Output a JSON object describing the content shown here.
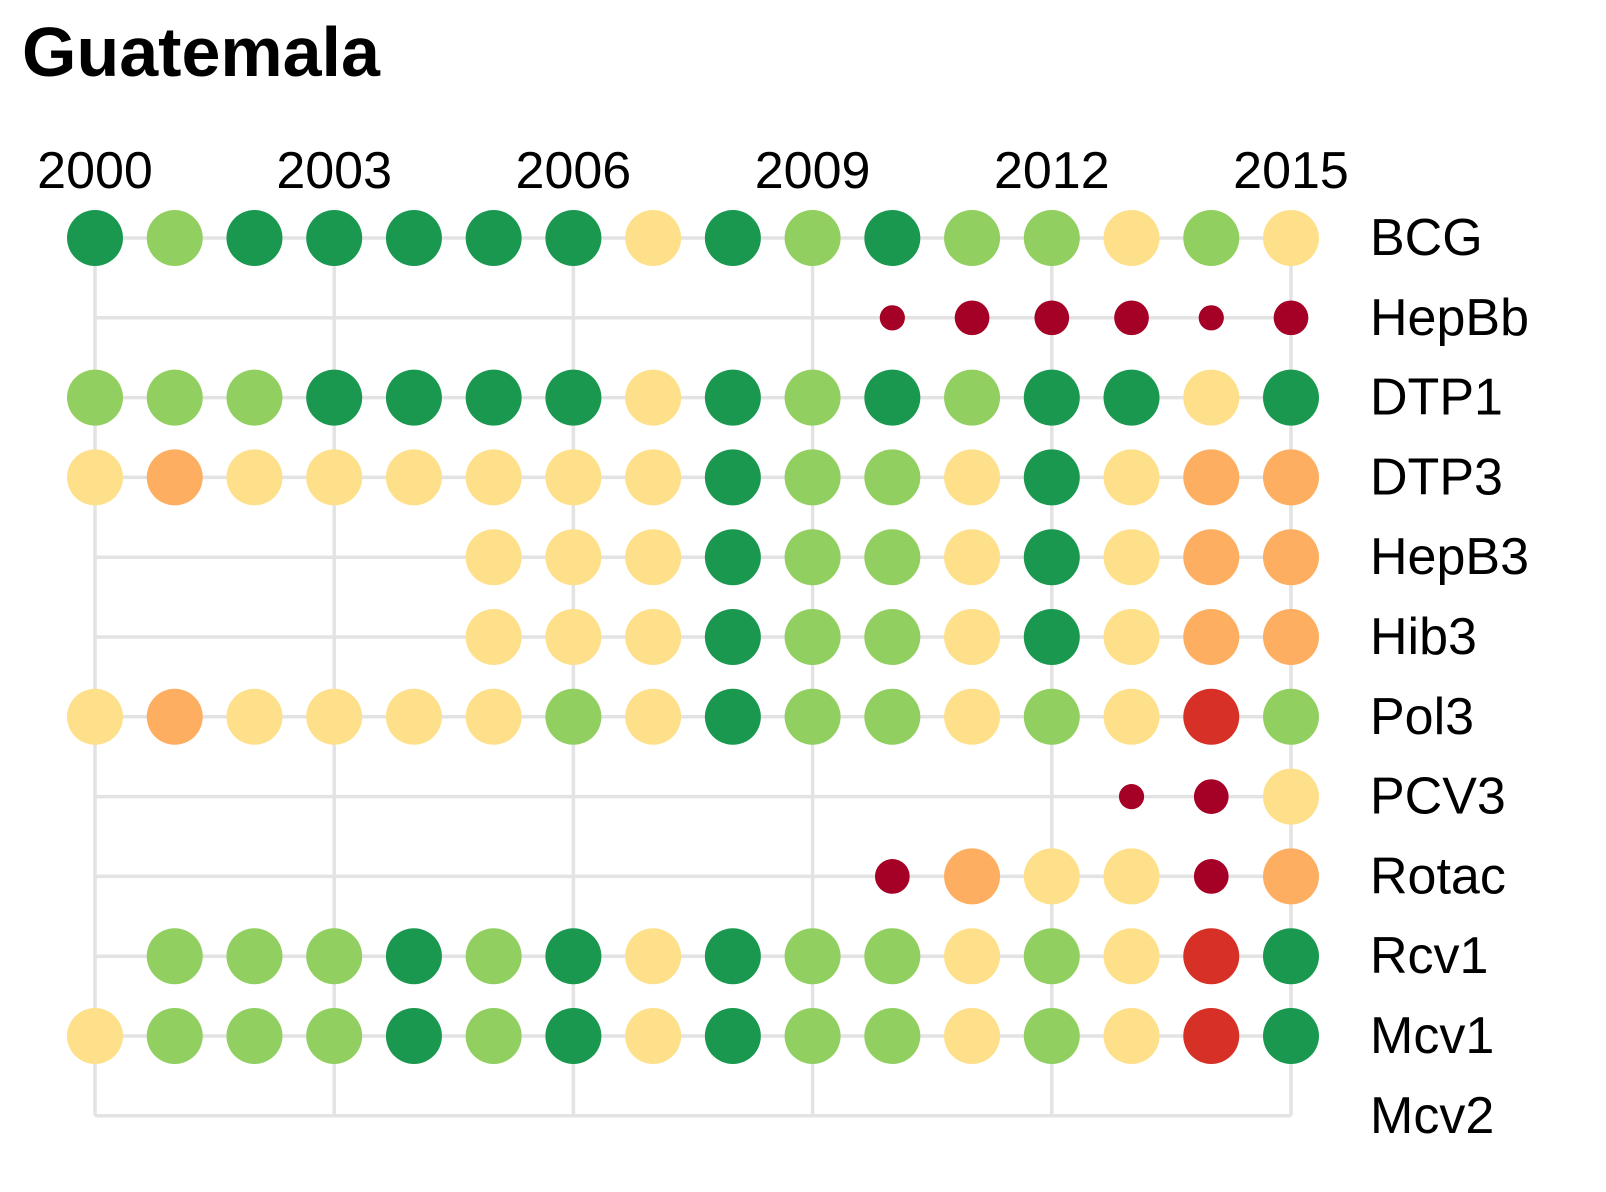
{
  "title": "Guatemala",
  "colors": {
    "gridline": "#e3e3e3",
    "text": "#000000"
  },
  "chart_data": {
    "type": "scatter",
    "title": "Guatemala",
    "x_tick_labels": [
      "2000",
      "2003",
      "2006",
      "2009",
      "2012",
      "2015"
    ],
    "x_ticks": [
      2000,
      2003,
      2006,
      2009,
      2012,
      2015
    ],
    "xlim": [
      2000,
      2015
    ],
    "vaccines": [
      "BCG",
      "HepBb",
      "DTP1",
      "DTP3",
      "HepB3",
      "Hib3",
      "Pol3",
      "PCV3",
      "Rotac",
      "Rcv1",
      "Mcv1",
      "Mcv2"
    ],
    "grid": true,
    "legend": "none",
    "palette": {
      "dark_green": "#1a9850",
      "light_green": "#91cf60",
      "yellow": "#fee08b",
      "orange": "#fdae61",
      "red": "#d73027",
      "dark_red": "#a50026"
    },
    "size_scale": {
      "full": 1.0,
      "small": 0.45,
      "medium": 0.62
    },
    "rows": [
      {
        "vaccine": "BCG",
        "line_start": 2000,
        "points": [
          {
            "x": 2000,
            "color": "dark_green"
          },
          {
            "x": 2001,
            "color": "light_green"
          },
          {
            "x": 2002,
            "color": "dark_green"
          },
          {
            "x": 2003,
            "color": "dark_green"
          },
          {
            "x": 2004,
            "color": "dark_green"
          },
          {
            "x": 2005,
            "color": "dark_green"
          },
          {
            "x": 2006,
            "color": "dark_green"
          },
          {
            "x": 2007,
            "color": "yellow"
          },
          {
            "x": 2008,
            "color": "dark_green"
          },
          {
            "x": 2009,
            "color": "light_green"
          },
          {
            "x": 2010,
            "color": "dark_green"
          },
          {
            "x": 2011,
            "color": "light_green"
          },
          {
            "x": 2012,
            "color": "light_green"
          },
          {
            "x": 2013,
            "color": "yellow"
          },
          {
            "x": 2014,
            "color": "light_green"
          },
          {
            "x": 2015,
            "color": "yellow"
          }
        ]
      },
      {
        "vaccine": "HepBb",
        "line_start": 2000,
        "points": [
          {
            "x": 2010,
            "color": "dark_red",
            "size": "small"
          },
          {
            "x": 2011,
            "color": "dark_red",
            "size": "medium"
          },
          {
            "x": 2012,
            "color": "dark_red",
            "size": "medium"
          },
          {
            "x": 2013,
            "color": "dark_red",
            "size": "medium"
          },
          {
            "x": 2014,
            "color": "dark_red",
            "size": "small"
          },
          {
            "x": 2015,
            "color": "dark_red",
            "size": "medium"
          }
        ]
      },
      {
        "vaccine": "DTP1",
        "line_start": 2000,
        "points": [
          {
            "x": 2000,
            "color": "light_green"
          },
          {
            "x": 2001,
            "color": "light_green"
          },
          {
            "x": 2002,
            "color": "light_green"
          },
          {
            "x": 2003,
            "color": "dark_green"
          },
          {
            "x": 2004,
            "color": "dark_green"
          },
          {
            "x": 2005,
            "color": "dark_green"
          },
          {
            "x": 2006,
            "color": "dark_green"
          },
          {
            "x": 2007,
            "color": "yellow"
          },
          {
            "x": 2008,
            "color": "dark_green"
          },
          {
            "x": 2009,
            "color": "light_green"
          },
          {
            "x": 2010,
            "color": "dark_green"
          },
          {
            "x": 2011,
            "color": "light_green"
          },
          {
            "x": 2012,
            "color": "dark_green"
          },
          {
            "x": 2013,
            "color": "dark_green"
          },
          {
            "x": 2014,
            "color": "yellow"
          },
          {
            "x": 2015,
            "color": "dark_green"
          }
        ]
      },
      {
        "vaccine": "DTP3",
        "line_start": 2000,
        "points": [
          {
            "x": 2000,
            "color": "yellow"
          },
          {
            "x": 2001,
            "color": "orange"
          },
          {
            "x": 2002,
            "color": "yellow"
          },
          {
            "x": 2003,
            "color": "yellow"
          },
          {
            "x": 2004,
            "color": "yellow"
          },
          {
            "x": 2005,
            "color": "yellow"
          },
          {
            "x": 2006,
            "color": "yellow"
          },
          {
            "x": 2007,
            "color": "yellow"
          },
          {
            "x": 2008,
            "color": "dark_green"
          },
          {
            "x": 2009,
            "color": "light_green"
          },
          {
            "x": 2010,
            "color": "light_green"
          },
          {
            "x": 2011,
            "color": "yellow"
          },
          {
            "x": 2012,
            "color": "dark_green"
          },
          {
            "x": 2013,
            "color": "yellow"
          },
          {
            "x": 2014,
            "color": "orange"
          },
          {
            "x": 2015,
            "color": "orange"
          }
        ]
      },
      {
        "vaccine": "HepB3",
        "line_start": 2000,
        "points": [
          {
            "x": 2005,
            "color": "yellow"
          },
          {
            "x": 2006,
            "color": "yellow"
          },
          {
            "x": 2007,
            "color": "yellow"
          },
          {
            "x": 2008,
            "color": "dark_green"
          },
          {
            "x": 2009,
            "color": "light_green"
          },
          {
            "x": 2010,
            "color": "light_green"
          },
          {
            "x": 2011,
            "color": "yellow"
          },
          {
            "x": 2012,
            "color": "dark_green"
          },
          {
            "x": 2013,
            "color": "yellow"
          },
          {
            "x": 2014,
            "color": "orange"
          },
          {
            "x": 2015,
            "color": "orange"
          }
        ]
      },
      {
        "vaccine": "Hib3",
        "line_start": 2000,
        "points": [
          {
            "x": 2005,
            "color": "yellow"
          },
          {
            "x": 2006,
            "color": "yellow"
          },
          {
            "x": 2007,
            "color": "yellow"
          },
          {
            "x": 2008,
            "color": "dark_green"
          },
          {
            "x": 2009,
            "color": "light_green"
          },
          {
            "x": 2010,
            "color": "light_green"
          },
          {
            "x": 2011,
            "color": "yellow"
          },
          {
            "x": 2012,
            "color": "dark_green"
          },
          {
            "x": 2013,
            "color": "yellow"
          },
          {
            "x": 2014,
            "color": "orange"
          },
          {
            "x": 2015,
            "color": "orange"
          }
        ]
      },
      {
        "vaccine": "Pol3",
        "line_start": 2000,
        "points": [
          {
            "x": 2000,
            "color": "yellow"
          },
          {
            "x": 2001,
            "color": "orange"
          },
          {
            "x": 2002,
            "color": "yellow"
          },
          {
            "x": 2003,
            "color": "yellow"
          },
          {
            "x": 2004,
            "color": "yellow"
          },
          {
            "x": 2005,
            "color": "yellow"
          },
          {
            "x": 2006,
            "color": "light_green"
          },
          {
            "x": 2007,
            "color": "yellow"
          },
          {
            "x": 2008,
            "color": "dark_green"
          },
          {
            "x": 2009,
            "color": "light_green"
          },
          {
            "x": 2010,
            "color": "light_green"
          },
          {
            "x": 2011,
            "color": "yellow"
          },
          {
            "x": 2012,
            "color": "light_green"
          },
          {
            "x": 2013,
            "color": "yellow"
          },
          {
            "x": 2014,
            "color": "red"
          },
          {
            "x": 2015,
            "color": "light_green"
          }
        ]
      },
      {
        "vaccine": "PCV3",
        "line_start": 2000,
        "points": [
          {
            "x": 2013,
            "color": "dark_red",
            "size": "small"
          },
          {
            "x": 2014,
            "color": "dark_red",
            "size": "medium"
          },
          {
            "x": 2015,
            "color": "yellow"
          }
        ]
      },
      {
        "vaccine": "Rotac",
        "line_start": 2000,
        "points": [
          {
            "x": 2010,
            "color": "dark_red",
            "size": "medium"
          },
          {
            "x": 2011,
            "color": "orange"
          },
          {
            "x": 2012,
            "color": "yellow"
          },
          {
            "x": 2013,
            "color": "yellow"
          },
          {
            "x": 2014,
            "color": "dark_red",
            "size": "medium"
          },
          {
            "x": 2015,
            "color": "orange"
          }
        ]
      },
      {
        "vaccine": "Rcv1",
        "line_start": 2000,
        "points": [
          {
            "x": 2001,
            "color": "light_green"
          },
          {
            "x": 2002,
            "color": "light_green"
          },
          {
            "x": 2003,
            "color": "light_green"
          },
          {
            "x": 2004,
            "color": "dark_green"
          },
          {
            "x": 2005,
            "color": "light_green"
          },
          {
            "x": 2006,
            "color": "dark_green"
          },
          {
            "x": 2007,
            "color": "yellow"
          },
          {
            "x": 2008,
            "color": "dark_green"
          },
          {
            "x": 2009,
            "color": "light_green"
          },
          {
            "x": 2010,
            "color": "light_green"
          },
          {
            "x": 2011,
            "color": "yellow"
          },
          {
            "x": 2012,
            "color": "light_green"
          },
          {
            "x": 2013,
            "color": "yellow"
          },
          {
            "x": 2014,
            "color": "red"
          },
          {
            "x": 2015,
            "color": "dark_green"
          }
        ]
      },
      {
        "vaccine": "Mcv1",
        "line_start": 2000,
        "points": [
          {
            "x": 2000,
            "color": "yellow"
          },
          {
            "x": 2001,
            "color": "light_green"
          },
          {
            "x": 2002,
            "color": "light_green"
          },
          {
            "x": 2003,
            "color": "light_green"
          },
          {
            "x": 2004,
            "color": "dark_green"
          },
          {
            "x": 2005,
            "color": "light_green"
          },
          {
            "x": 2006,
            "color": "dark_green"
          },
          {
            "x": 2007,
            "color": "yellow"
          },
          {
            "x": 2008,
            "color": "dark_green"
          },
          {
            "x": 2009,
            "color": "light_green"
          },
          {
            "x": 2010,
            "color": "light_green"
          },
          {
            "x": 2011,
            "color": "yellow"
          },
          {
            "x": 2012,
            "color": "light_green"
          },
          {
            "x": 2013,
            "color": "yellow"
          },
          {
            "x": 2014,
            "color": "red"
          },
          {
            "x": 2015,
            "color": "dark_green"
          }
        ]
      },
      {
        "vaccine": "Mcv2",
        "line_start": 2000,
        "points": []
      }
    ]
  }
}
